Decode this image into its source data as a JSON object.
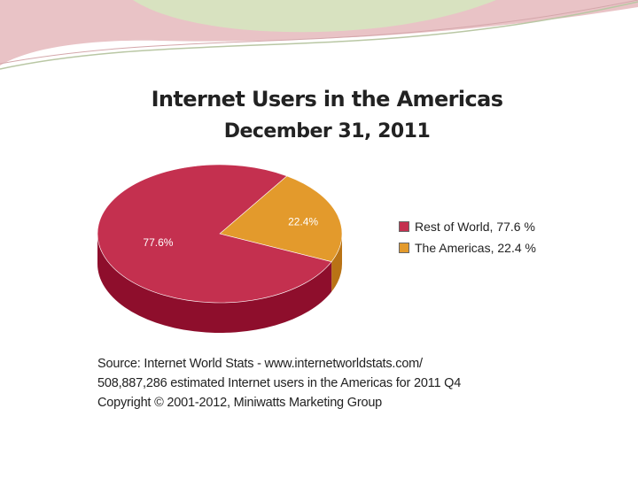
{
  "colors": {
    "rest_top": "#c4304f",
    "rest_side": "#8e0e2c",
    "americas_top": "#e39a2c",
    "americas_side": "#b97315",
    "banner_rose": "#e9b9bd",
    "banner_green": "#cfe0b3"
  },
  "chart_data": {
    "type": "pie",
    "title": "Internet Users in the Americas",
    "subtitle": "December 31, 2011",
    "slices": [
      {
        "label": "Rest of World",
        "value": 77.6,
        "data_label": "77.6%",
        "legend": "Rest of World, 77.6 %",
        "color": "#c4304f",
        "side_color": "#8e0e2c"
      },
      {
        "label": "The Americas",
        "value": 22.4,
        "data_label": "22.4%",
        "legend": "The Americas, 22.4 %",
        "color": "#e39a2c",
        "side_color": "#b97315"
      }
    ],
    "legend_position": "right",
    "notes": [
      "Source: Internet World Stats - www.internetworldstats.com/",
      "508,887,286 estimated Internet users in the Americas for 2011 Q4",
      "Copyright © 2001-2012, Miniwatts Marketing Group"
    ]
  }
}
